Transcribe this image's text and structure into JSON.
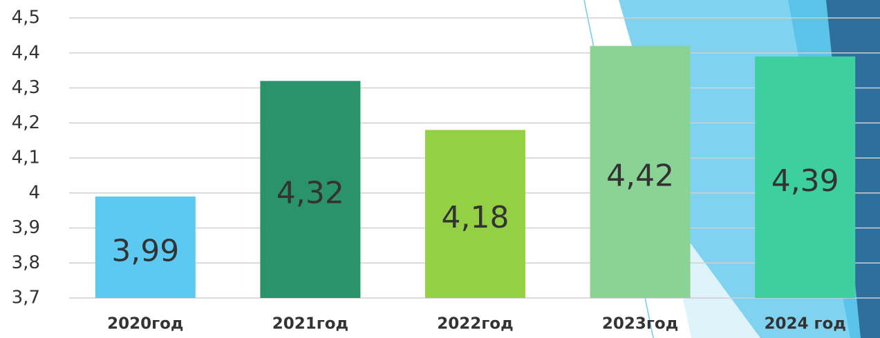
{
  "chart_data": {
    "type": "bar",
    "categories": [
      "2020год",
      "2021год",
      "2022год",
      "2023год",
      "2024 год"
    ],
    "values": [
      3.99,
      4.32,
      4.18,
      4.42,
      4.39
    ],
    "value_labels": [
      "3,99",
      "4,32",
      "4,18",
      "4,42",
      "4,39"
    ],
    "colors": [
      "#5bc9f1",
      "#2b936b",
      "#94d043",
      "#8bd395",
      "#3dcf9e"
    ],
    "ylim": [
      3.7,
      4.5
    ],
    "yticks": [
      {
        "value": 3.7,
        "label": "3,7"
      },
      {
        "value": 3.8,
        "label": "3,8"
      },
      {
        "value": 3.9,
        "label": "3,9"
      },
      4,
      {
        "value": 4.1,
        "label": "4,1"
      },
      {
        "value": 4.2,
        "label": "4,2"
      },
      {
        "value": 4.3,
        "label": "4,3"
      },
      {
        "value": 4.4,
        "label": "4,4"
      },
      {
        "value": 4.5,
        "label": "4,5"
      }
    ],
    "grid": true
  }
}
